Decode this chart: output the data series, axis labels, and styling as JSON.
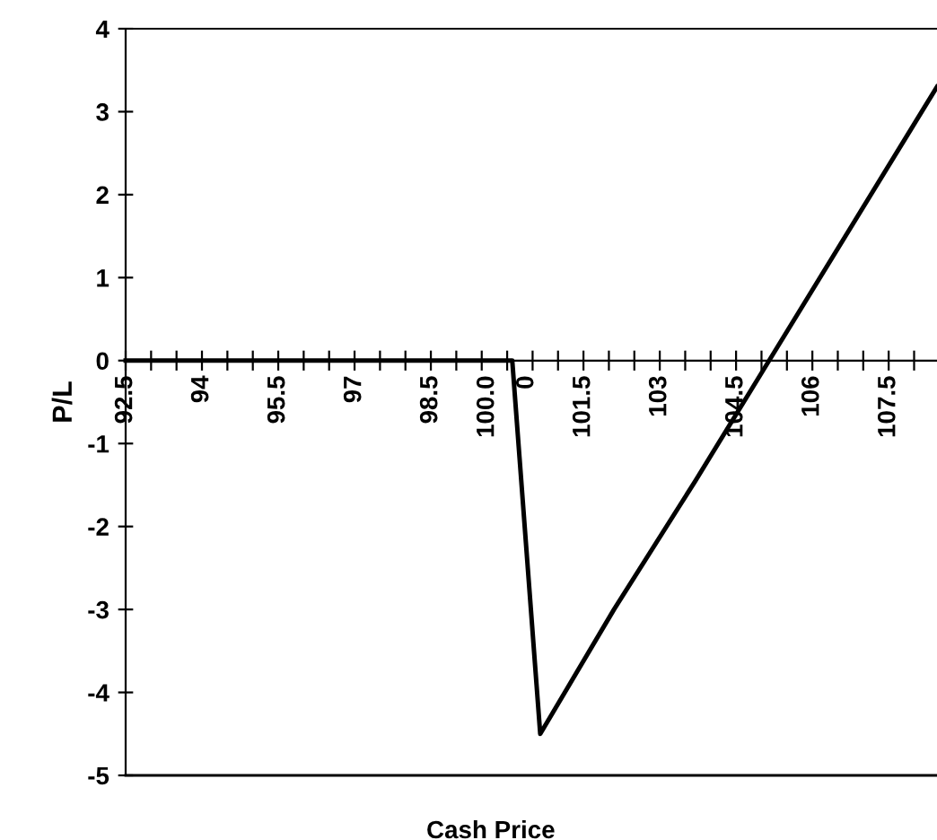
{
  "chart_data": {
    "type": "line",
    "xlabel": "Cash Price",
    "ylabel": "P/L",
    "x": [
      92.5,
      100.1,
      100.65,
      102.1,
      103.7,
      105.15,
      108.45
    ],
    "values": [
      0,
      0,
      -4.5,
      -3.0,
      -1.45,
      0,
      3.3
    ],
    "color": "#000000",
    "marker": "none",
    "line_style": "solid",
    "grid": false,
    "legend": false,
    "xlim": [
      92.5,
      108.45
    ],
    "ylim": [
      -5,
      4
    ],
    "xticks": [
      {
        "value": 92.5,
        "label": "92.5"
      },
      {
        "value": 93,
        "label": null
      },
      {
        "value": 93.5,
        "label": null
      },
      {
        "value": 94,
        "label": "94"
      },
      {
        "value": 94.5,
        "label": null
      },
      {
        "value": 95,
        "label": null
      },
      {
        "value": 95.5,
        "label": "95.5"
      },
      {
        "value": 96,
        "label": null
      },
      {
        "value": 96.5,
        "label": null
      },
      {
        "value": 97,
        "label": "97"
      },
      {
        "value": 97.5,
        "label": null
      },
      {
        "value": 98,
        "label": null
      },
      {
        "value": 98.5,
        "label": "98.5"
      },
      {
        "value": 99,
        "label": null
      },
      {
        "value": 99.5,
        "label": null
      },
      {
        "value": 100,
        "label": "100.0\n0"
      },
      {
        "value": 100.5,
        "label": null
      },
      {
        "value": 101,
        "label": null
      },
      {
        "value": 101.5,
        "label": "101.5"
      },
      {
        "value": 102,
        "label": null
      },
      {
        "value": 102.5,
        "label": null
      },
      {
        "value": 103,
        "label": "103"
      },
      {
        "value": 103.5,
        "label": null
      },
      {
        "value": 104,
        "label": null
      },
      {
        "value": 104.5,
        "label": "104.5"
      },
      {
        "value": 105,
        "label": null
      },
      {
        "value": 105.5,
        "label": null
      },
      {
        "value": 106,
        "label": "106"
      },
      {
        "value": 106.5,
        "label": null
      },
      {
        "value": 107,
        "label": null
      },
      {
        "value": 107.5,
        "label": "107.5"
      },
      {
        "value": 108,
        "label": null
      }
    ],
    "yticks": [
      -5,
      -4,
      -3,
      -2,
      -1,
      0,
      1,
      2,
      3,
      4
    ]
  }
}
